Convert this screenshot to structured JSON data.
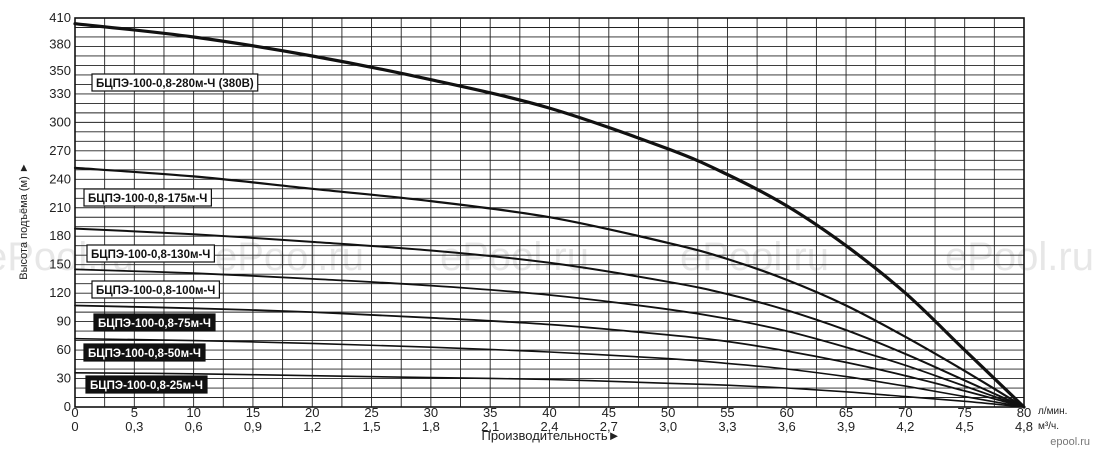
{
  "chart_data": {
    "type": "line",
    "title": "",
    "xlabel": "Производительность►",
    "ylabel": "Высота подъёма (м) ►",
    "x_unit_primary": "л/мин.",
    "x_unit_secondary": "м³/ч.",
    "xlim": [
      0,
      80
    ],
    "ylim": [
      0,
      410
    ],
    "grid": true,
    "x_ticks_primary": [
      "0",
      "5",
      "10",
      "15",
      "20",
      "25",
      "30",
      "35",
      "40",
      "45",
      "50",
      "55",
      "60",
      "65",
      "70",
      "75",
      "80"
    ],
    "x_ticks_secondary": [
      "0",
      "0,3",
      "0,6",
      "0,9",
      "1,2",
      "1,5",
      "1,8",
      "2,1",
      "2,4",
      "2,7",
      "3,0",
      "3,3",
      "3,6",
      "3,9",
      "4,2",
      "4,5",
      "4,8"
    ],
    "y_ticks": [
      "0",
      "30",
      "60",
      "90",
      "120",
      "150",
      "180",
      "210",
      "240",
      "270",
      "300",
      "330",
      "350",
      "380",
      "410"
    ],
    "series": [
      {
        "name": "БЦПЭ-100-0,8-280м-Ч (380В)",
        "x": [
          0,
          10,
          20,
          30,
          40,
          50,
          55,
          60,
          65,
          70,
          75,
          80
        ],
        "values": [
          404,
          390,
          370,
          345,
          315,
          272,
          245,
          212,
          170,
          120,
          60,
          0
        ],
        "width": 3.2
      },
      {
        "name": "БЦПЭ-100-0,8-175м-Ч",
        "x": [
          0,
          10,
          20,
          30,
          40,
          50,
          55,
          60,
          65,
          70,
          75,
          80
        ],
        "values": [
          252,
          243,
          230,
          217,
          200,
          173,
          156,
          134,
          107,
          74,
          38,
          0
        ],
        "width": 2.2
      },
      {
        "name": "БЦПЭ-100-0,8-130м-Ч",
        "x": [
          0,
          10,
          20,
          30,
          40,
          50,
          55,
          60,
          65,
          70,
          75,
          80
        ],
        "values": [
          188,
          182,
          174,
          165,
          152,
          132,
          119,
          102,
          81,
          56,
          28,
          0
        ],
        "width": 2.0
      },
      {
        "name": "БЦПЭ-100-0,8-100м-Ч",
        "x": [
          0,
          10,
          20,
          30,
          40,
          50,
          55,
          60,
          65,
          70,
          75,
          80
        ],
        "values": [
          145,
          141,
          135,
          128,
          118,
          103,
          93,
          80,
          63,
          44,
          22,
          0
        ],
        "width": 1.8
      },
      {
        "name": "БЦПЭ-100-0,8-75м-Ч",
        "x": [
          0,
          10,
          20,
          30,
          40,
          50,
          55,
          60,
          65,
          70,
          75,
          80
        ],
        "values": [
          107,
          104,
          100,
          94,
          87,
          76,
          69,
          59,
          47,
          33,
          17,
          0
        ],
        "width": 1.8
      },
      {
        "name": "БЦПЭ-100-0,8-50м-Ч",
        "x": [
          0,
          10,
          20,
          30,
          40,
          50,
          55,
          60,
          65,
          70,
          75,
          80
        ],
        "values": [
          72,
          70,
          67,
          63,
          58,
          51,
          46,
          40,
          32,
          22,
          11,
          0
        ],
        "width": 1.6
      },
      {
        "name": "БЦПЭ-100-0,8-25м-Ч",
        "x": [
          0,
          10,
          20,
          30,
          40,
          50,
          55,
          60,
          65,
          70,
          75,
          80
        ],
        "values": [
          36,
          35,
          33,
          31,
          29,
          25,
          23,
          20,
          16,
          11,
          6,
          0
        ],
        "width": 1.6
      }
    ],
    "label_styles": [
      "outline",
      "outline",
      "outline",
      "outline",
      "filled",
      "filled",
      "filled"
    ],
    "label_anchor_x": [
      1.2,
      0.8,
      1.0,
      1.2,
      1.6,
      0.8,
      0.8
    ]
  },
  "watermark": "ePool.ru",
  "brand": "epool.ru"
}
